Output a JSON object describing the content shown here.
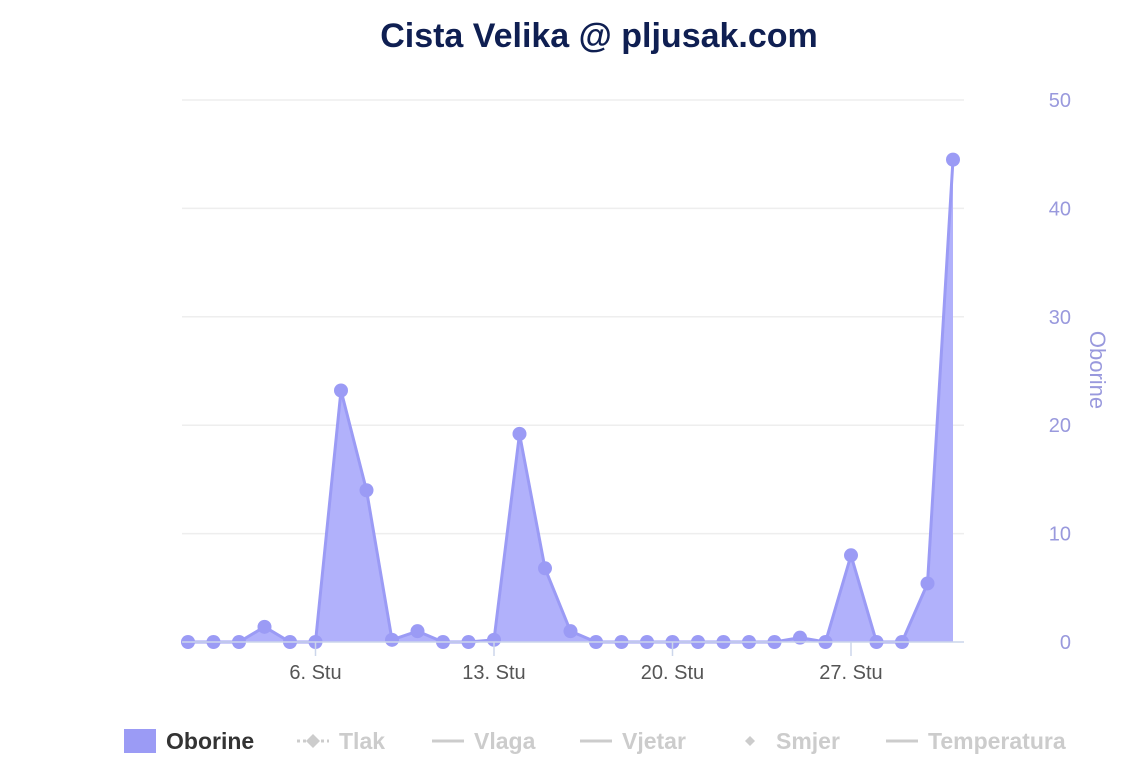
{
  "chart_data": {
    "type": "area",
    "title": "Cista Velika @ pljusak.com",
    "ylabel": "Oborine",
    "ylim": [
      0,
      50
    ],
    "yticks": [
      "0",
      "10",
      "20",
      "30",
      "40",
      "50"
    ],
    "xticks": [
      {
        "day": 6,
        "label": "6. Stu"
      },
      {
        "day": 13,
        "label": "13. Stu"
      },
      {
        "day": 20,
        "label": "20. Stu"
      },
      {
        "day": 27,
        "label": "27. Stu"
      }
    ],
    "grid": true,
    "legend_position": "bottom",
    "series": [
      {
        "name": "Oborine",
        "x": [
          1,
          2,
          3,
          4,
          5,
          6,
          7,
          8,
          9,
          10,
          11,
          12,
          13,
          14,
          15,
          16,
          17,
          18,
          19,
          20,
          21,
          22,
          23,
          24,
          25,
          26,
          27,
          28,
          29,
          30,
          31
        ],
        "values": [
          0,
          0,
          0,
          1.4,
          0,
          0,
          23.2,
          14,
          0.2,
          1,
          0,
          0,
          0.2,
          19.2,
          6.8,
          1,
          0,
          0,
          0,
          0,
          0,
          0,
          0,
          0,
          0.4,
          0,
          8,
          0,
          0,
          5.4,
          44.5
        ]
      }
    ]
  },
  "legend": [
    {
      "label": "Oborine",
      "active": true,
      "symbol": "rect"
    },
    {
      "label": "Tlak",
      "active": false,
      "symbol": "line-diamond-dotted"
    },
    {
      "label": "Vlaga",
      "active": false,
      "symbol": "line"
    },
    {
      "label": "Vjetar",
      "active": false,
      "symbol": "line"
    },
    {
      "label": "Smjer",
      "active": false,
      "symbol": "diamond"
    },
    {
      "label": "Temperatura",
      "active": false,
      "symbol": "line"
    }
  ],
  "colors": {
    "series": "#9b9bf5",
    "fill": "#b1b1fb",
    "axis_text": "#9999dd",
    "title": "#0f1f52",
    "inactive": "#cccccc",
    "active_legend_text": "#333333",
    "grid": "#eeeeee",
    "xtick_text": "#555555"
  }
}
